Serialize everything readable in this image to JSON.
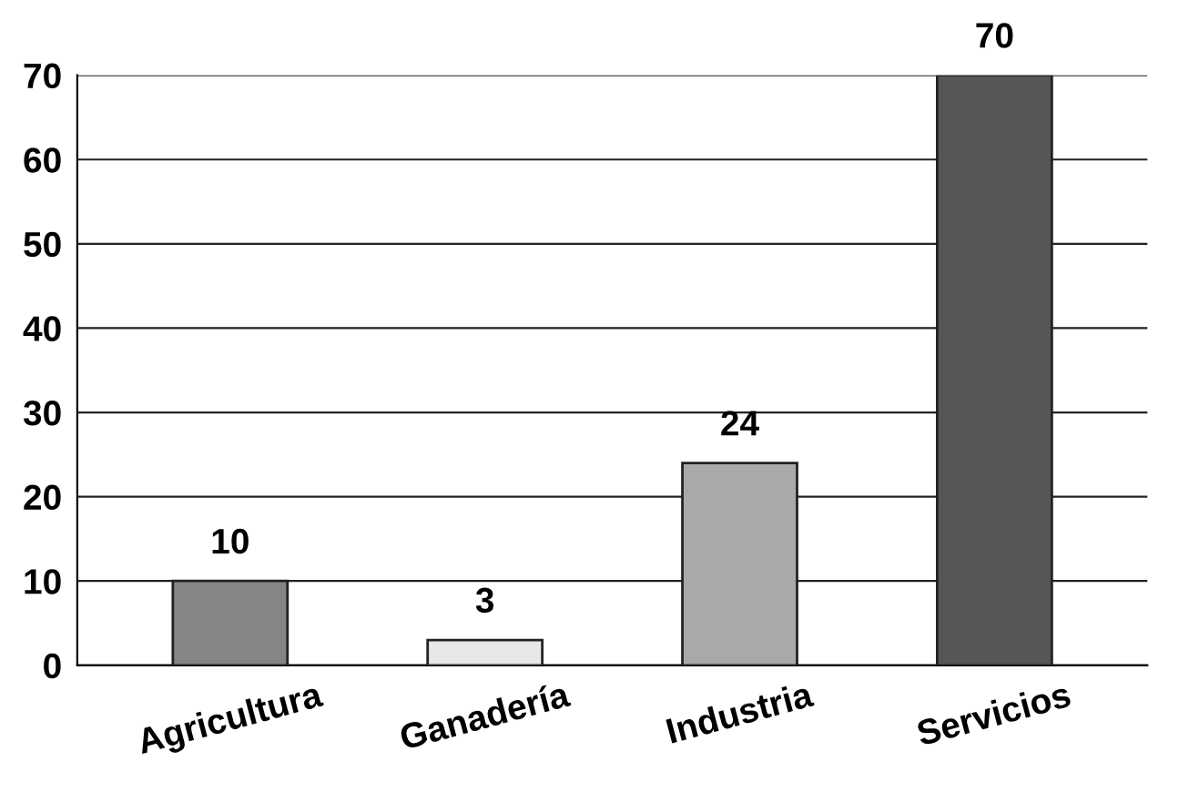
{
  "chart_data": {
    "type": "bar",
    "categories": [
      "Agricultura",
      "Ganadería",
      "Industria",
      "Servicios"
    ],
    "values": [
      10,
      3,
      24,
      70
    ],
    "colors": [
      "#858585",
      "#e8e8e8",
      "#a9a9a9",
      "#565656"
    ],
    "ylim": [
      0,
      70
    ],
    "yticks": [
      0,
      10,
      20,
      30,
      40,
      50,
      60,
      70
    ],
    "grid": "y",
    "data_labels": true
  }
}
